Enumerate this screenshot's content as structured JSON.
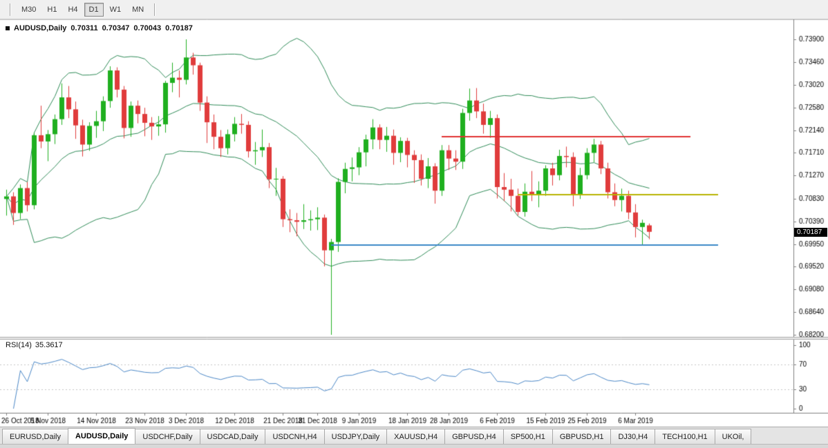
{
  "toolbar": {
    "timeframes": [
      {
        "label": "M30",
        "active": false
      },
      {
        "label": "H1",
        "active": false
      },
      {
        "label": "H4",
        "active": false
      },
      {
        "label": "D1",
        "active": true
      },
      {
        "label": "W1",
        "active": false
      },
      {
        "label": "MN",
        "active": false
      }
    ]
  },
  "legend": {
    "symbol": "AUDUSD,Daily",
    "open": "0.70311",
    "high": "0.70347",
    "low": "0.70043",
    "close": "0.70187"
  },
  "rsi_label": {
    "name": "RSI(14)",
    "value": "35.3617"
  },
  "price_axis": {
    "current_price": "0.70187"
  },
  "tabs": [
    {
      "label": "EURUSD,Daily",
      "active": false
    },
    {
      "label": "AUDUSD,Daily",
      "active": true
    },
    {
      "label": "USDCHF,Daily",
      "active": false
    },
    {
      "label": "USDCAD,Daily",
      "active": false
    },
    {
      "label": "USDCNH,H4",
      "active": false
    },
    {
      "label": "USDJPY,Daily",
      "active": false
    },
    {
      "label": "XAUUSD,H4",
      "active": false
    },
    {
      "label": "GBPUSD,H4",
      "active": false
    },
    {
      "label": "SP500,H1",
      "active": false
    },
    {
      "label": "GBPUSD,H1",
      "active": false
    },
    {
      "label": "DJ30,H4",
      "active": false
    },
    {
      "label": "TECH100,H1",
      "active": false
    },
    {
      "label": "UKOil,",
      "active": false
    }
  ],
  "chart_data": {
    "type": "candlestick",
    "symbol": "AUDUSD",
    "timeframe": "Daily",
    "colors": {
      "up": "#1faf1f",
      "down": "#e03c3c",
      "bollinger": "#2e8b57",
      "rsi_line": "#4a87c7"
    },
    "y_axis": {
      "min": 0.682,
      "max": 0.739,
      "labels": [
        "0.73900",
        "0.73460",
        "0.73020",
        "0.72580",
        "0.72140",
        "0.71710",
        "0.71270",
        "0.70830",
        "0.70390",
        "0.69950",
        "0.69520",
        "0.69080",
        "0.68640",
        "0.68200"
      ]
    },
    "x_axis": {
      "labels": [
        {
          "text": "26 Oct 2018",
          "index": 0
        },
        {
          "text": "5 Nov 2018",
          "index": 6
        },
        {
          "text": "14 Nov 2018",
          "index": 13
        },
        {
          "text": "23 Nov 2018",
          "index": 20
        },
        {
          "text": "3 Dec 2018",
          "index": 26
        },
        {
          "text": "12 Dec 2018",
          "index": 33
        },
        {
          "text": "21 Dec 2018",
          "index": 40
        },
        {
          "text": "31 Dec 2018",
          "index": 45
        },
        {
          "text": "9 Jan 2019",
          "index": 51
        },
        {
          "text": "18 Jan 2019",
          "index": 58
        },
        {
          "text": "28 Jan 2019",
          "index": 64
        },
        {
          "text": "6 Feb 2019",
          "index": 71
        },
        {
          "text": "15 Feb 2019",
          "index": 78
        },
        {
          "text": "25 Feb 2019",
          "index": 84
        },
        {
          "text": "6 Mar 2019",
          "index": 91
        }
      ]
    },
    "rsi_axis": {
      "labels": [
        "100",
        "70",
        "30",
        "0"
      ],
      "levels": [
        70,
        30
      ],
      "range": [
        0,
        100
      ]
    },
    "indicators": {
      "bollinger": {
        "period": 20,
        "deviation": 2
      },
      "rsi": {
        "period": 14,
        "current": 35.3617
      }
    },
    "overlays": [
      {
        "type": "hline",
        "price": 0.7202,
        "color": "#e03131",
        "from_index": 63,
        "to_index": 99,
        "width": 2
      },
      {
        "type": "hline",
        "price": 0.709,
        "color": "#b8b400",
        "from_index": 74,
        "to_index": 103,
        "width": 2
      },
      {
        "type": "hline",
        "price": 0.6993,
        "color": "#3a87c8",
        "from_index": 47,
        "to_index": 103,
        "width": 2
      }
    ],
    "ohlc": [
      [
        0.7082,
        0.71,
        0.705,
        0.7087
      ],
      [
        0.7087,
        0.7095,
        0.7032,
        0.7055
      ],
      [
        0.7055,
        0.711,
        0.7043,
        0.7103
      ],
      [
        0.7103,
        0.7115,
        0.7058,
        0.707
      ],
      [
        0.707,
        0.721,
        0.7062,
        0.7205
      ],
      [
        0.7205,
        0.7262,
        0.718,
        0.7193
      ],
      [
        0.7193,
        0.7215,
        0.7155,
        0.7207
      ],
      [
        0.7207,
        0.7245,
        0.7188,
        0.7236
      ],
      [
        0.7236,
        0.7305,
        0.7225,
        0.7278
      ],
      [
        0.7278,
        0.73,
        0.7238,
        0.7255
      ],
      [
        0.7255,
        0.727,
        0.7198,
        0.7224
      ],
      [
        0.7224,
        0.7235,
        0.7164,
        0.7187
      ],
      [
        0.7187,
        0.723,
        0.7175,
        0.7223
      ],
      [
        0.7223,
        0.7252,
        0.72,
        0.7232
      ],
      [
        0.7232,
        0.728,
        0.7213,
        0.7271
      ],
      [
        0.7271,
        0.7338,
        0.7258,
        0.733
      ],
      [
        0.733,
        0.7336,
        0.7278,
        0.7293
      ],
      [
        0.7293,
        0.73,
        0.7199,
        0.7219
      ],
      [
        0.7219,
        0.727,
        0.7202,
        0.7262
      ],
      [
        0.7262,
        0.7272,
        0.7228,
        0.7246
      ],
      [
        0.7246,
        0.7258,
        0.7203,
        0.7229
      ],
      [
        0.7229,
        0.724,
        0.7196,
        0.7222
      ],
      [
        0.7222,
        0.7242,
        0.7204,
        0.7226
      ],
      [
        0.7226,
        0.731,
        0.721,
        0.7306
      ],
      [
        0.7306,
        0.7345,
        0.7288,
        0.7316
      ],
      [
        0.7316,
        0.733,
        0.7278,
        0.7312
      ],
      [
        0.7312,
        0.739,
        0.7303,
        0.7355
      ],
      [
        0.7355,
        0.7364,
        0.7322,
        0.734
      ],
      [
        0.734,
        0.7345,
        0.7252,
        0.7268
      ],
      [
        0.7268,
        0.728,
        0.719,
        0.723
      ],
      [
        0.723,
        0.7245,
        0.7178,
        0.7202
      ],
      [
        0.7202,
        0.7215,
        0.7163,
        0.718
      ],
      [
        0.718,
        0.7216,
        0.7168,
        0.7207
      ],
      [
        0.7207,
        0.724,
        0.7193,
        0.7227
      ],
      [
        0.7227,
        0.7246,
        0.7208,
        0.7225
      ],
      [
        0.7225,
        0.7232,
        0.7162,
        0.7174
      ],
      [
        0.7174,
        0.7192,
        0.7148,
        0.7176
      ],
      [
        0.7176,
        0.7216,
        0.7163,
        0.7182
      ],
      [
        0.7182,
        0.719,
        0.7103,
        0.712
      ],
      [
        0.712,
        0.7142,
        0.7088,
        0.7121
      ],
      [
        0.7121,
        0.7126,
        0.7028,
        0.7043
      ],
      [
        0.7043,
        0.7062,
        0.7018,
        0.7041
      ],
      [
        0.7041,
        0.7055,
        0.701,
        0.7038
      ],
      [
        0.7038,
        0.7072,
        0.7024,
        0.7041
      ],
      [
        0.7041,
        0.706,
        0.7021,
        0.7043
      ],
      [
        0.7043,
        0.7066,
        0.7022,
        0.7046
      ],
      [
        0.7046,
        0.7052,
        0.6952,
        0.6983
      ],
      [
        0.6983,
        0.7005,
        0.682,
        0.6999
      ],
      [
        0.6999,
        0.7122,
        0.698,
        0.7115
      ],
      [
        0.7115,
        0.7152,
        0.7093,
        0.714
      ],
      [
        0.714,
        0.7162,
        0.7116,
        0.7143
      ],
      [
        0.7143,
        0.7182,
        0.7128,
        0.7172
      ],
      [
        0.7172,
        0.7206,
        0.7145,
        0.7197
      ],
      [
        0.7197,
        0.7236,
        0.7178,
        0.722
      ],
      [
        0.722,
        0.7226,
        0.7178,
        0.7196
      ],
      [
        0.7196,
        0.7221,
        0.7173,
        0.7204
      ],
      [
        0.7204,
        0.7216,
        0.7148,
        0.7171
      ],
      [
        0.7171,
        0.7201,
        0.7153,
        0.7194
      ],
      [
        0.7194,
        0.72,
        0.7143,
        0.7167
      ],
      [
        0.7167,
        0.7176,
        0.7113,
        0.7157
      ],
      [
        0.7157,
        0.7168,
        0.7108,
        0.7121
      ],
      [
        0.7121,
        0.7161,
        0.7103,
        0.7145
      ],
      [
        0.7145,
        0.7151,
        0.7073,
        0.7098
      ],
      [
        0.7098,
        0.7186,
        0.7088,
        0.7176
      ],
      [
        0.7176,
        0.7186,
        0.7138,
        0.716
      ],
      [
        0.716,
        0.7176,
        0.7138,
        0.7154
      ],
      [
        0.7154,
        0.7256,
        0.714,
        0.7248
      ],
      [
        0.7248,
        0.7295,
        0.7233,
        0.7272
      ],
      [
        0.7272,
        0.7296,
        0.7238,
        0.7251
      ],
      [
        0.7251,
        0.7266,
        0.7208,
        0.7225
      ],
      [
        0.7225,
        0.7252,
        0.72,
        0.7238
      ],
      [
        0.7238,
        0.7245,
        0.7083,
        0.7105
      ],
      [
        0.7105,
        0.7132,
        0.7078,
        0.71
      ],
      [
        0.71,
        0.7121,
        0.7058,
        0.7088
      ],
      [
        0.7088,
        0.7102,
        0.705,
        0.7057
      ],
      [
        0.7057,
        0.7112,
        0.7048,
        0.7096
      ],
      [
        0.7096,
        0.7136,
        0.7078,
        0.709
      ],
      [
        0.709,
        0.7116,
        0.7066,
        0.7098
      ],
      [
        0.7098,
        0.7147,
        0.7088,
        0.7141
      ],
      [
        0.7141,
        0.7152,
        0.7108,
        0.7128
      ],
      [
        0.7128,
        0.7177,
        0.7118,
        0.7165
      ],
      [
        0.7165,
        0.7183,
        0.7143,
        0.7163
      ],
      [
        0.7163,
        0.7172,
        0.7068,
        0.7091
      ],
      [
        0.7091,
        0.7142,
        0.7082,
        0.7128
      ],
      [
        0.7128,
        0.718,
        0.712,
        0.7171
      ],
      [
        0.7171,
        0.7198,
        0.7153,
        0.7187
      ],
      [
        0.7187,
        0.7194,
        0.713,
        0.7141
      ],
      [
        0.7141,
        0.7152,
        0.7083,
        0.7095
      ],
      [
        0.7095,
        0.7112,
        0.7068,
        0.708
      ],
      [
        0.708,
        0.7102,
        0.7058,
        0.7088
      ],
      [
        0.7088,
        0.7098,
        0.7043,
        0.7056
      ],
      [
        0.7056,
        0.7072,
        0.7008,
        0.7028
      ],
      [
        0.7028,
        0.7042,
        0.6993,
        0.7036
      ],
      [
        0.70311,
        0.70347,
        0.70043,
        0.70187
      ]
    ]
  }
}
